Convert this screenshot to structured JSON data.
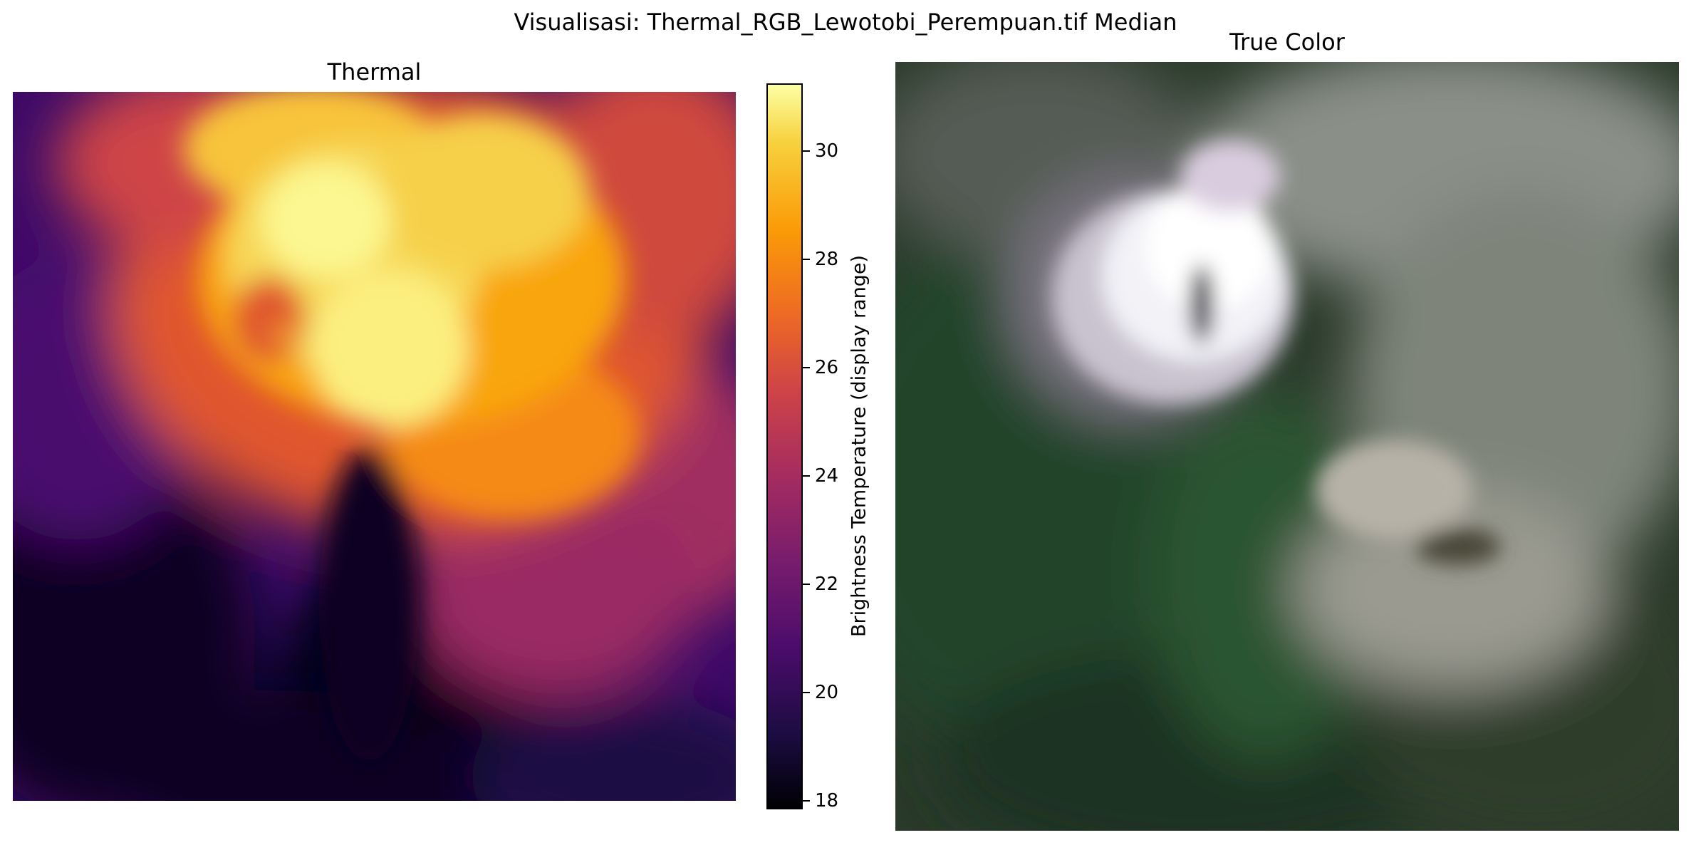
{
  "suptitle": "Visualisasi: Thermal_RGB_Lewotobi_Perempuan.tif Median",
  "thermal": {
    "title": "Thermal",
    "colormap": "inferno"
  },
  "truecolor": {
    "title": "True Color"
  },
  "colorbar": {
    "label": "Brightness Temperature (display range)",
    "range": [
      17.8,
      31.2
    ],
    "ticks": [
      "18",
      "20",
      "22",
      "24",
      "26",
      "28",
      "30"
    ]
  }
}
